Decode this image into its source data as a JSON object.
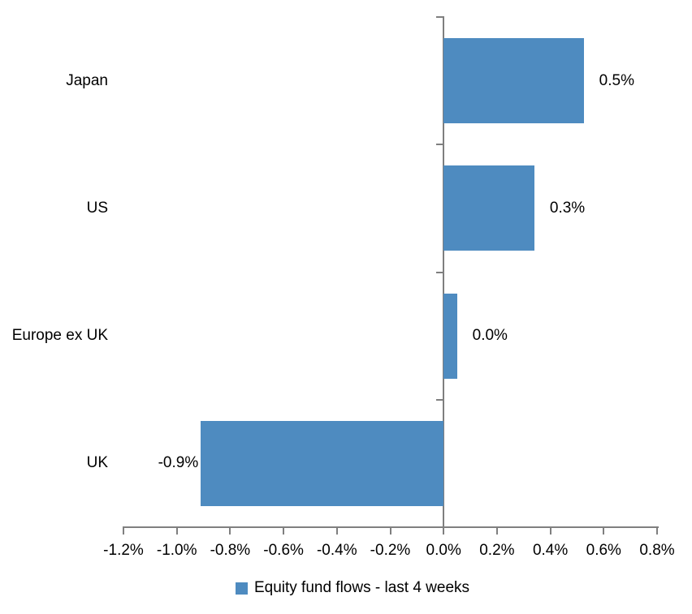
{
  "chart_data": {
    "type": "bar",
    "orientation": "horizontal",
    "title": "",
    "xlabel": "",
    "ylabel": "",
    "grid": false,
    "categories": [
      "Japan",
      "US",
      "Europe ex UK",
      "UK"
    ],
    "values": [
      0.5,
      0.3,
      0.0,
      -0.9
    ],
    "values_plotted_pct": [
      0.525,
      0.34,
      0.05,
      -0.91
    ],
    "data_labels": [
      "0.5%",
      "0.3%",
      "0.0%",
      "-0.9%"
    ],
    "x_axis": {
      "min": -1.2,
      "max": 0.8,
      "step": 0.2,
      "tick_labels": [
        "-1.2%",
        "-1.0%",
        "-0.8%",
        "-0.6%",
        "-0.4%",
        "-0.2%",
        "0.0%",
        "0.2%",
        "0.4%",
        "0.6%",
        "0.8%"
      ]
    },
    "legend": {
      "label": "Equity fund flows - last 4 weeks",
      "position": "bottom"
    },
    "colors": {
      "bar": "#4E8BC0",
      "axis": "#7F7F7F",
      "text": "#000000",
      "background": "#FFFFFF"
    }
  }
}
